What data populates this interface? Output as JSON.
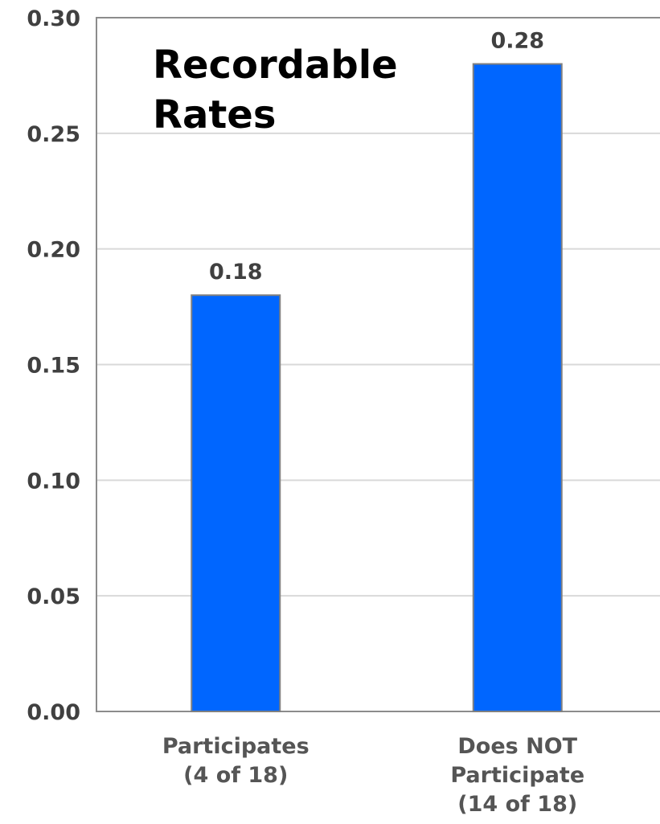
{
  "chart_data": {
    "type": "bar",
    "title_lines": [
      "Recordable",
      "Rates"
    ],
    "categories": [
      [
        "Participates",
        "(4 of 18)"
      ],
      [
        "Does NOT",
        "Participate",
        "(14 of 18)"
      ]
    ],
    "values": [
      0.18,
      0.28
    ],
    "data_labels": [
      "0.18",
      "0.28"
    ],
    "ylim": [
      0,
      0.3
    ],
    "yticks": [
      0.0,
      0.05,
      0.1,
      0.15,
      0.2,
      0.25,
      0.3
    ],
    "ytick_labels": [
      "0.00",
      "0.05",
      "0.10",
      "0.15",
      "0.20",
      "0.25",
      "0.30"
    ],
    "grid": true,
    "legend": "none",
    "colors": {
      "bar": "#0066ff",
      "bar_outline": "#808080",
      "grid": "#d9d9d9",
      "frame": "#8c8c8c"
    }
  }
}
